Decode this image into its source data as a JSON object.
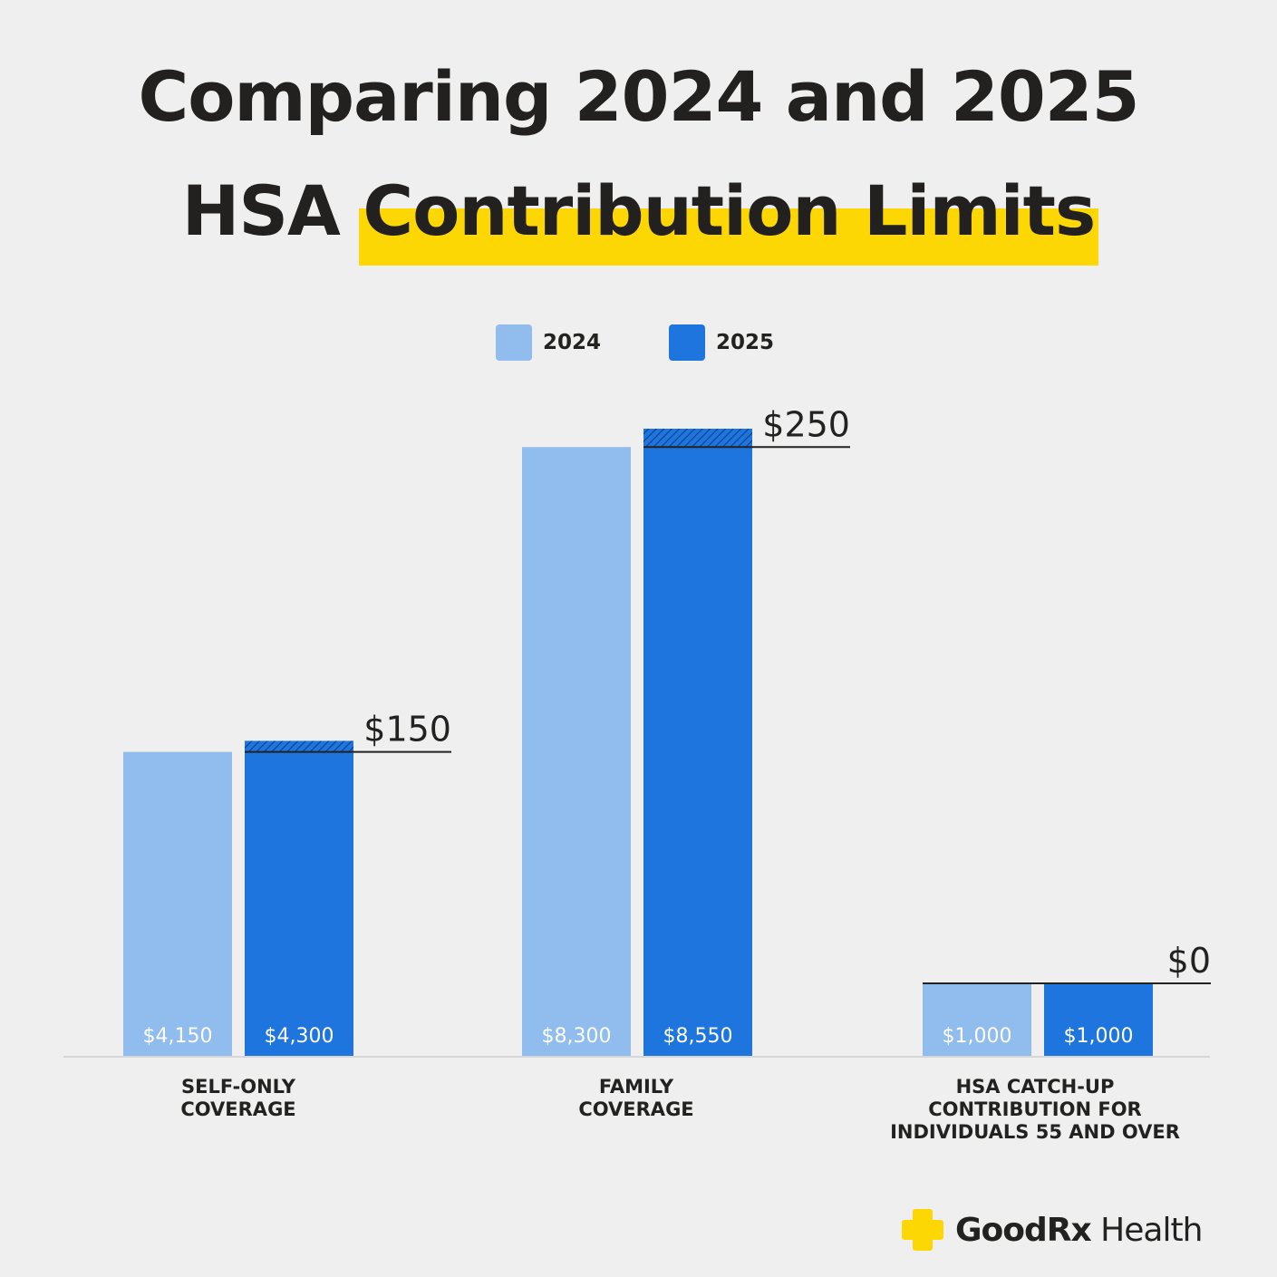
{
  "title": {
    "line1": "Comparing 2024 and 2025",
    "line2_prefix": "HSA ",
    "line2_highlight": "Contribution Limits"
  },
  "colors": {
    "background": "#efefef",
    "highlight": "#fdd703",
    "series_2024": "#90bcee",
    "series_2025": "#1f75de",
    "text": "#222220",
    "brand_plus": "#fdd703"
  },
  "chart_data": {
    "type": "bar",
    "categories": [
      [
        "SELF-ONLY",
        "COVERAGE"
      ],
      [
        "FAMILY",
        "COVERAGE"
      ],
      [
        "HSA CATCH-UP",
        "CONTRIBUTION FOR",
        "INDIVIDUALS 55 AND OVER"
      ]
    ],
    "series": [
      {
        "name": "2024",
        "values": [
          4150,
          8300,
          1000
        ],
        "labels": [
          "$4,150",
          "$8,300",
          "$1,000"
        ]
      },
      {
        "name": "2025",
        "values": [
          4300,
          8550,
          1000
        ],
        "labels": [
          "$4,300",
          "$8,550",
          "$1,000"
        ]
      }
    ],
    "differences": [
      150,
      250,
      0
    ],
    "difference_labels": [
      "$150",
      "$250",
      "$0"
    ],
    "ylim": [
      0,
      8550
    ],
    "grid": false,
    "legend": "top-center"
  },
  "legend": {
    "item_2024": "2024",
    "item_2025": "2025"
  },
  "brand": {
    "name_bold": "GoodRx",
    "name_regular": " Health",
    "icon": "plus-icon"
  }
}
